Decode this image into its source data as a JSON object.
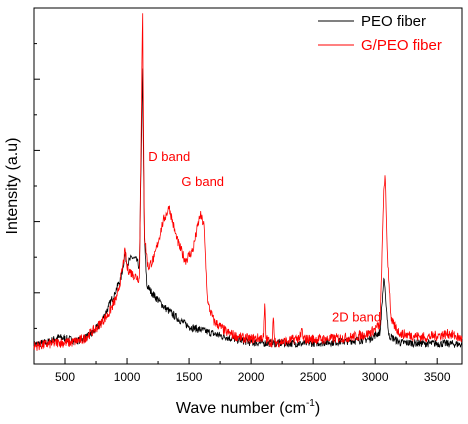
{
  "chart_data": {
    "type": "line",
    "xlabel": "Wave number (cm",
    "xlabel_sup": "-1",
    "xlabel_close": ")",
    "ylabel": "Intensity (a.u)",
    "xlim": [
      250,
      3700
    ],
    "ylim": [
      0,
      1
    ],
    "xticks": [
      500,
      1000,
      1500,
      2000,
      2500,
      3000,
      3500
    ],
    "yticks_labeled": false,
    "grid": false,
    "legend_position": "top-right",
    "series": [
      {
        "name": "PEO fiber",
        "color": "#000000",
        "points": [
          [
            250,
            0.055
          ],
          [
            350,
            0.06
          ],
          [
            450,
            0.075
          ],
          [
            520,
            0.07
          ],
          [
            600,
            0.065
          ],
          [
            700,
            0.08
          ],
          [
            780,
            0.11
          ],
          [
            850,
            0.16
          ],
          [
            900,
            0.2
          ],
          [
            950,
            0.24
          ],
          [
            985,
            0.31
          ],
          [
            1000,
            0.28
          ],
          [
            1040,
            0.3
          ],
          [
            1080,
            0.29
          ],
          [
            1100,
            0.27
          ],
          [
            1125,
            0.83
          ],
          [
            1140,
            0.35
          ],
          [
            1160,
            0.22
          ],
          [
            1200,
            0.2
          ],
          [
            1300,
            0.16
          ],
          [
            1400,
            0.13
          ],
          [
            1500,
            0.105
          ],
          [
            1600,
            0.095
          ],
          [
            1700,
            0.085
          ],
          [
            1800,
            0.075
          ],
          [
            1900,
            0.068
          ],
          [
            2000,
            0.06
          ],
          [
            2200,
            0.058
          ],
          [
            2400,
            0.058
          ],
          [
            2600,
            0.06
          ],
          [
            2800,
            0.065
          ],
          [
            2950,
            0.07
          ],
          [
            3040,
            0.09
          ],
          [
            3070,
            0.24
          ],
          [
            3085,
            0.18
          ],
          [
            3110,
            0.08
          ],
          [
            3200,
            0.06
          ],
          [
            3400,
            0.058
          ],
          [
            3600,
            0.057
          ],
          [
            3700,
            0.055
          ]
        ]
      },
      {
        "name": "G/PEO fiber",
        "color": "#ff0000",
        "points": [
          [
            250,
            0.05
          ],
          [
            350,
            0.055
          ],
          [
            450,
            0.06
          ],
          [
            550,
            0.06
          ],
          [
            650,
            0.07
          ],
          [
            750,
            0.1
          ],
          [
            850,
            0.14
          ],
          [
            920,
            0.19
          ],
          [
            960,
            0.26
          ],
          [
            985,
            0.32
          ],
          [
            1000,
            0.27
          ],
          [
            1050,
            0.25
          ],
          [
            1100,
            0.24
          ],
          [
            1125,
            0.985
          ],
          [
            1140,
            0.36
          ],
          [
            1170,
            0.27
          ],
          [
            1220,
            0.3
          ],
          [
            1290,
            0.4
          ],
          [
            1340,
            0.44
          ],
          [
            1400,
            0.35
          ],
          [
            1470,
            0.29
          ],
          [
            1530,
            0.32
          ],
          [
            1590,
            0.42
          ],
          [
            1620,
            0.39
          ],
          [
            1650,
            0.17
          ],
          [
            1700,
            0.12
          ],
          [
            1800,
            0.09
          ],
          [
            1900,
            0.075
          ],
          [
            2000,
            0.07
          ],
          [
            2100,
            0.075
          ],
          [
            2110,
            0.17
          ],
          [
            2120,
            0.07
          ],
          [
            2170,
            0.06
          ],
          [
            2180,
            0.13
          ],
          [
            2190,
            0.06
          ],
          [
            2300,
            0.065
          ],
          [
            2400,
            0.075
          ],
          [
            2410,
            0.1
          ],
          [
            2420,
            0.07
          ],
          [
            2600,
            0.07
          ],
          [
            2800,
            0.075
          ],
          [
            2950,
            0.085
          ],
          [
            3040,
            0.11
          ],
          [
            3070,
            0.49
          ],
          [
            3080,
            0.53
          ],
          [
            3100,
            0.3
          ],
          [
            3130,
            0.12
          ],
          [
            3200,
            0.085
          ],
          [
            3400,
            0.075
          ],
          [
            3600,
            0.085
          ],
          [
            3700,
            0.07
          ]
        ]
      }
    ],
    "annotations": [
      {
        "text": "D band",
        "x": 1340,
        "y": 0.57
      },
      {
        "text": "G band",
        "x": 1610,
        "y": 0.5
      },
      {
        "text": "2D band",
        "x": 2850,
        "y": 0.12
      }
    ]
  }
}
